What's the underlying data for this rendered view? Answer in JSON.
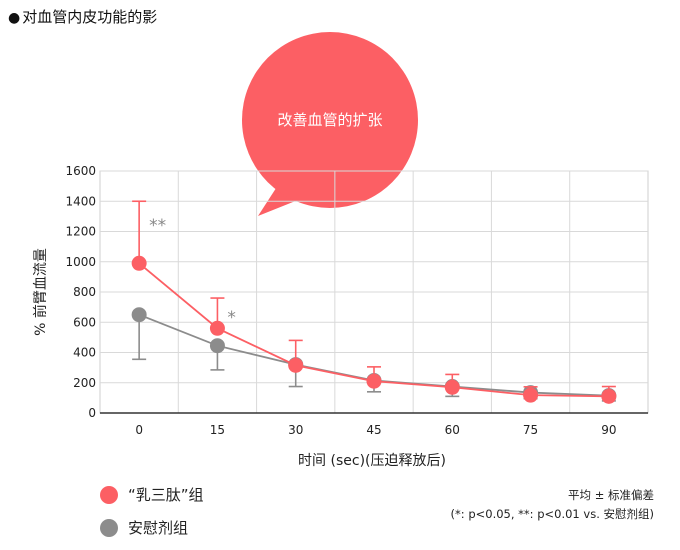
{
  "page": {
    "title": "对血管内皮功能的影",
    "title_bullet": "●"
  },
  "callout": {
    "text": "改善血管的扩张",
    "color": "#fc5f64"
  },
  "legend": {
    "items": [
      {
        "label": "“乳三肽”组",
        "color": "#fc5f64"
      },
      {
        "label": "安慰剂组",
        "color": "#8c8c8c"
      }
    ]
  },
  "note": {
    "line1": "平均 ± 标准偏差",
    "line2": "(*: p<0.05, **: p<0.01 vs. 安慰剂组)"
  },
  "chart_data": {
    "type": "line",
    "xlabel": "时间 (sec)(压迫释放后)",
    "ylabel": "% 前臂血流量",
    "x": [
      0,
      15,
      30,
      45,
      60,
      75,
      90
    ],
    "ylim": [
      0,
      1600
    ],
    "yticks": [
      0,
      200,
      400,
      600,
      800,
      1000,
      1200,
      1400,
      1600
    ],
    "grid": true,
    "series": [
      {
        "name": "“乳三肽”组",
        "color": "#fc5f64",
        "values": [
          990,
          560,
          315,
          210,
          170,
          118,
          110
        ],
        "error": [
          410,
          200,
          165,
          95,
          85,
          55,
          65
        ],
        "error_dir": "up"
      },
      {
        "name": "安慰剂组",
        "color": "#8c8c8c",
        "values": [
          650,
          445,
          320,
          215,
          175,
          135,
          115
        ],
        "error": [
          295,
          160,
          145,
          75,
          65,
          40,
          35
        ],
        "error_dir": "down"
      }
    ],
    "annotations": [
      {
        "x": 0,
        "y": 1250,
        "text": "**"
      },
      {
        "x": 15,
        "y": 640,
        "text": "*"
      }
    ]
  }
}
